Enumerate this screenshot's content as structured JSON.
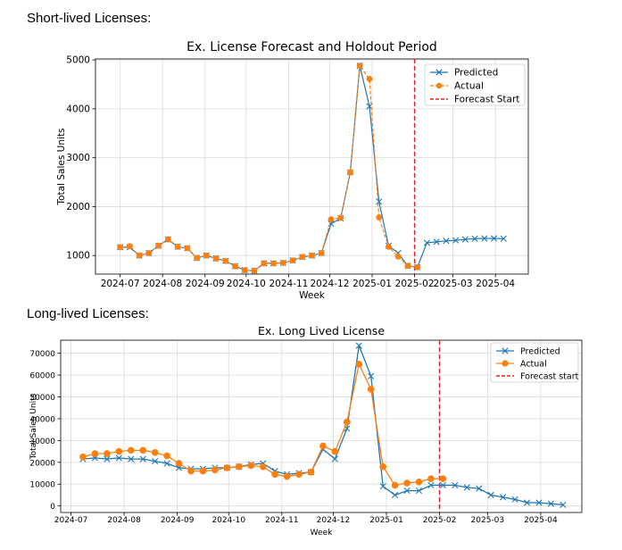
{
  "labels": {
    "short": "Short-lived Licenses:",
    "long": "Long-lived Licenses:"
  },
  "colors": {
    "predicted": "#1f77b4",
    "actual": "#ff7f0e",
    "forecast": "#d62728",
    "grid": "#d9d9d9"
  },
  "chart_data": [
    {
      "type": "line",
      "title": "Ex. License Forecast and Holdout Period",
      "xlabel": "Week",
      "ylabel": "Total Sales Units",
      "grid": true,
      "legend_position": "top-right",
      "xlim": [
        "2024-06-13",
        "2025-04-25"
      ],
      "ylim": [
        620,
        5020
      ],
      "xticks": [
        "2024-07-01",
        "2024-08-01",
        "2024-09-01",
        "2024-10-01",
        "2024-11-01",
        "2024-12-01",
        "2025-01-01",
        "2025-02-01",
        "2025-03-01",
        "2025-04-01"
      ],
      "xtick_labels": [
        "2024-07",
        "2024-08",
        "2024-09",
        "2024-10",
        "2024-11",
        "2024-12",
        "2025-01",
        "2025-02",
        "2025-03",
        "2025-04"
      ],
      "yticks": [
        1000,
        2000,
        3000,
        4000,
        5000
      ],
      "forecast_start": "2025-02-01",
      "series": [
        {
          "name": "Predicted",
          "style": "solid",
          "marker": "x",
          "x": [
            "2024-07-01",
            "2024-07-08",
            "2024-07-15",
            "2024-07-22",
            "2024-07-29",
            "2024-08-05",
            "2024-08-12",
            "2024-08-19",
            "2024-08-26",
            "2024-09-02",
            "2024-09-09",
            "2024-09-16",
            "2024-09-23",
            "2024-09-30",
            "2024-10-07",
            "2024-10-14",
            "2024-10-21",
            "2024-10-28",
            "2024-11-04",
            "2024-11-11",
            "2024-11-18",
            "2024-11-25",
            "2024-12-02",
            "2024-12-09",
            "2024-12-16",
            "2024-12-23",
            "2024-12-30",
            "2025-01-06",
            "2025-01-13",
            "2025-01-20",
            "2025-01-27",
            "2025-02-03",
            "2025-02-10",
            "2025-02-17",
            "2025-02-24",
            "2025-03-03",
            "2025-03-10",
            "2025-03-17",
            "2025-03-24",
            "2025-03-31",
            "2025-04-07"
          ],
          "values": [
            1170,
            1170,
            1000,
            1050,
            1200,
            1330,
            1180,
            1150,
            950,
            1000,
            940,
            890,
            780,
            700,
            690,
            840,
            840,
            850,
            900,
            970,
            1000,
            1050,
            1650,
            1760,
            2700,
            4880,
            4050,
            2100,
            1200,
            1050,
            790,
            760,
            1260,
            1280,
            1300,
            1310,
            1330,
            1345,
            1350,
            1350,
            1345
          ]
        },
        {
          "name": "Actual",
          "style": "dashed",
          "marker": "o",
          "x": [
            "2024-07-01",
            "2024-07-08",
            "2024-07-15",
            "2024-07-22",
            "2024-07-29",
            "2024-08-05",
            "2024-08-12",
            "2024-08-19",
            "2024-08-26",
            "2024-09-02",
            "2024-09-09",
            "2024-09-16",
            "2024-09-23",
            "2024-09-30",
            "2024-10-07",
            "2024-10-14",
            "2024-10-21",
            "2024-10-28",
            "2024-11-04",
            "2024-11-11",
            "2024-11-18",
            "2024-11-25",
            "2024-12-02",
            "2024-12-09",
            "2024-12-16",
            "2024-12-23",
            "2024-12-30",
            "2025-01-06",
            "2025-01-13",
            "2025-01-20",
            "2025-01-27",
            "2025-02-03"
          ],
          "values": [
            1170,
            1190,
            1000,
            1050,
            1200,
            1330,
            1180,
            1150,
            950,
            1000,
            940,
            890,
            780,
            700,
            690,
            840,
            840,
            850,
            900,
            970,
            1000,
            1050,
            1740,
            1770,
            2700,
            4880,
            4610,
            1780,
            1180,
            980,
            790,
            760
          ]
        }
      ],
      "legend": [
        "Predicted",
        "Actual",
        "Forecast Start"
      ]
    },
    {
      "type": "line",
      "title": "Ex. Long Lived License",
      "xlabel": "Week",
      "ylabel": "Total Sales Units",
      "grid": true,
      "legend_position": "top-right",
      "xlim": [
        "2024-06-25",
        "2025-04-25"
      ],
      "ylim": [
        -3000,
        76000
      ],
      "xticks": [
        "2024-07-01",
        "2024-08-01",
        "2024-09-01",
        "2024-10-01",
        "2024-11-01",
        "2024-12-01",
        "2025-01-01",
        "2025-02-01",
        "2025-03-01",
        "2025-04-01"
      ],
      "xtick_labels": [
        "2024-07",
        "2024-08",
        "2024-09",
        "2024-10",
        "2024-11",
        "2024-12",
        "2025-01",
        "2025-02",
        "2025-03",
        "2025-04"
      ],
      "yticks": [
        0,
        10000,
        20000,
        30000,
        40000,
        50000,
        60000,
        70000
      ],
      "forecast_start": "2025-02-01",
      "series": [
        {
          "name": "Predicted",
          "style": "solid",
          "marker": "x",
          "x": [
            "2024-07-08",
            "2024-07-15",
            "2024-07-22",
            "2024-07-29",
            "2024-08-05",
            "2024-08-12",
            "2024-08-19",
            "2024-08-26",
            "2024-09-02",
            "2024-09-09",
            "2024-09-16",
            "2024-09-23",
            "2024-09-30",
            "2024-10-07",
            "2024-10-14",
            "2024-10-21",
            "2024-10-28",
            "2024-11-04",
            "2024-11-11",
            "2024-11-18",
            "2024-11-25",
            "2024-12-02",
            "2024-12-09",
            "2024-12-16",
            "2024-12-23",
            "2024-12-30",
            "2025-01-06",
            "2025-01-13",
            "2025-01-20",
            "2025-01-27",
            "2025-02-03",
            "2025-02-10",
            "2025-02-17",
            "2025-02-24",
            "2025-03-03",
            "2025-03-10",
            "2025-03-17",
            "2025-03-24",
            "2025-03-31",
            "2025-04-07",
            "2025-04-14"
          ],
          "values": [
            21500,
            22000,
            21500,
            22000,
            21500,
            21500,
            20500,
            19500,
            17500,
            17000,
            17000,
            17500,
            17500,
            18000,
            19000,
            19500,
            16000,
            14500,
            15000,
            15500,
            26000,
            21500,
            35500,
            73500,
            59500,
            9000,
            5000,
            7000,
            7000,
            9500,
            9500,
            9500,
            8500,
            8000,
            5000,
            4000,
            3000,
            1500,
            1500,
            1000,
            500
          ]
        },
        {
          "name": "Actual",
          "style": "solid",
          "marker": "o",
          "x": [
            "2024-07-08",
            "2024-07-15",
            "2024-07-22",
            "2024-07-29",
            "2024-08-05",
            "2024-08-12",
            "2024-08-19",
            "2024-08-26",
            "2024-09-02",
            "2024-09-09",
            "2024-09-16",
            "2024-09-23",
            "2024-09-30",
            "2024-10-07",
            "2024-10-14",
            "2024-10-21",
            "2024-10-28",
            "2024-11-04",
            "2024-11-11",
            "2024-11-18",
            "2024-11-25",
            "2024-12-02",
            "2024-12-09",
            "2024-12-16",
            "2024-12-23",
            "2024-12-30",
            "2025-01-06",
            "2025-01-13",
            "2025-01-20",
            "2025-01-27",
            "2025-02-03"
          ],
          "values": [
            22500,
            24000,
            24000,
            25000,
            25500,
            25500,
            24500,
            23000,
            19500,
            16000,
            16000,
            16500,
            17500,
            18000,
            18500,
            18000,
            14500,
            13500,
            14500,
            15500,
            27500,
            25000,
            38500,
            65000,
            53500,
            18000,
            9500,
            10500,
            11000,
            12500,
            12500
          ]
        }
      ],
      "legend": [
        "Predicted",
        "Actual",
        "Forecast start"
      ]
    }
  ]
}
